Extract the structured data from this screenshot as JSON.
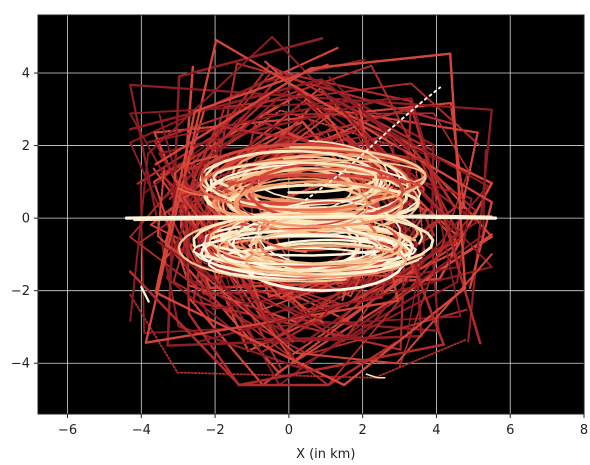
{
  "chart_data": {
    "type": "line",
    "title": "",
    "xlabel": "X (in km)",
    "ylabel": "",
    "xlim": [
      -6.8,
      8
    ],
    "ylim": [
      -5.4,
      5.6
    ],
    "xticks": [
      -6,
      -4,
      -2,
      0,
      2,
      4,
      6,
      8
    ],
    "yticks": [
      -4,
      -2,
      0,
      2,
      4
    ],
    "grid": true,
    "background": "#000000",
    "grid_color": "#d9d9d9",
    "colormap": "heat",
    "palette": [
      "#8f1d23",
      "#b32a2b",
      "#d6453a",
      "#e96f4e",
      "#f39b6b",
      "#f7c58f",
      "#fbe7bd",
      "#fff6df"
    ]
  }
}
